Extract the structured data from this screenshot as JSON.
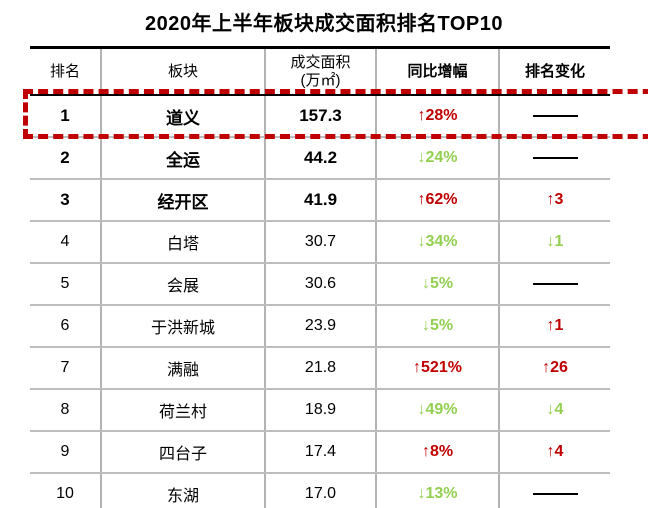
{
  "title": "2020年上半年板块成交面积排名TOP10",
  "colors": {
    "up_red": "#c00000",
    "down_green": "#92d050",
    "highlight_border": "#c00000",
    "grid_gray": "#b3b3b3",
    "frame_black": "#000000"
  },
  "table": {
    "columns": [
      "排名",
      "板块",
      "成交面积\n(万㎡)",
      "同比增幅",
      "排名变化"
    ],
    "rows": [
      {
        "rank": "1",
        "block": "道义",
        "area": "157.3",
        "yoy": "↑28%",
        "yoy_dir": "up",
        "change": "——",
        "change_dir": "none",
        "emphasis": true,
        "highlighted": true
      },
      {
        "rank": "2",
        "block": "全运",
        "area": "44.2",
        "yoy": "↓24%",
        "yoy_dir": "down",
        "change": "——",
        "change_dir": "none",
        "emphasis": true,
        "highlighted": false
      },
      {
        "rank": "3",
        "block": "经开区",
        "area": "41.9",
        "yoy": "↑62%",
        "yoy_dir": "up",
        "change": "↑3",
        "change_dir": "up",
        "emphasis": true,
        "highlighted": false
      },
      {
        "rank": "4",
        "block": "白塔",
        "area": "30.7",
        "yoy": "↓34%",
        "yoy_dir": "down",
        "change": "↓1",
        "change_dir": "down",
        "emphasis": false,
        "highlighted": false
      },
      {
        "rank": "5",
        "block": "会展",
        "area": "30.6",
        "yoy": "↓5%",
        "yoy_dir": "down",
        "change": "——",
        "change_dir": "none",
        "emphasis": false,
        "highlighted": false
      },
      {
        "rank": "6",
        "block": "于洪新城",
        "area": "23.9",
        "yoy": "↓5%",
        "yoy_dir": "down",
        "change": "↑1",
        "change_dir": "up",
        "emphasis": false,
        "highlighted": false
      },
      {
        "rank": "7",
        "block": "满融",
        "area": "21.8",
        "yoy": "↑521%",
        "yoy_dir": "up",
        "change": "↑26",
        "change_dir": "up",
        "emphasis": false,
        "highlighted": false
      },
      {
        "rank": "8",
        "block": "荷兰村",
        "area": "18.9",
        "yoy": "↓49%",
        "yoy_dir": "down",
        "change": "↓4",
        "change_dir": "down",
        "emphasis": false,
        "highlighted": false
      },
      {
        "rank": "9",
        "block": "四台子",
        "area": "17.4",
        "yoy": "↑8%",
        "yoy_dir": "up",
        "change": "↑4",
        "change_dir": "up",
        "emphasis": false,
        "highlighted": false
      },
      {
        "rank": "10",
        "block": "东湖",
        "area": "17.0",
        "yoy": "↓13%",
        "yoy_dir": "down",
        "change": "——",
        "change_dir": "none",
        "emphasis": false,
        "highlighted": false
      }
    ]
  },
  "chart_data": {
    "type": "table",
    "title": "2020年上半年板块成交面积排名TOP10",
    "columns": [
      "排名",
      "板块",
      "成交面积(万㎡)",
      "同比增幅",
      "排名变化"
    ],
    "rows": [
      [
        1,
        "道义",
        157.3,
        "+28%",
        "0"
      ],
      [
        2,
        "全运",
        44.2,
        "-24%",
        "0"
      ],
      [
        3,
        "经开区",
        41.9,
        "+62%",
        "+3"
      ],
      [
        4,
        "白塔",
        30.7,
        "-34%",
        "-1"
      ],
      [
        5,
        "会展",
        30.6,
        "-5%",
        "0"
      ],
      [
        6,
        "于洪新城",
        23.9,
        "-5%",
        "+1"
      ],
      [
        7,
        "满融",
        21.8,
        "+521%",
        "+26"
      ],
      [
        8,
        "荷兰村",
        18.9,
        "-49%",
        "-4"
      ],
      [
        9,
        "四台子",
        17.4,
        "+8%",
        "+4"
      ],
      [
        10,
        "东湖",
        17.0,
        "-13%",
        "0"
      ]
    ],
    "notes": "Row 1 (道义) is outlined with a red dashed rectangle; ranks 1-3 rendered bold; up values red #c00000, down values green #92d050, no-change shown as black dash"
  }
}
